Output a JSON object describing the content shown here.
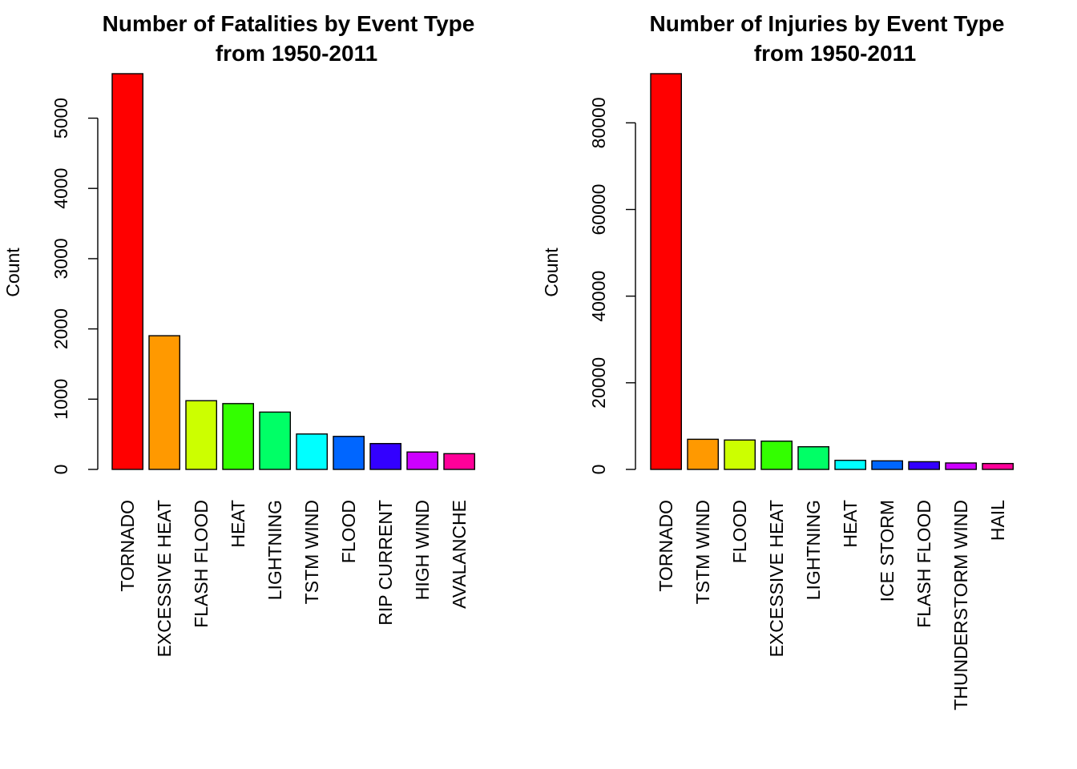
{
  "chart_data": [
    {
      "type": "bar",
      "title": "Number of Fatalities by Event Type",
      "subtitle": "from 1950-2011",
      "xlabel": "",
      "ylabel": "Count",
      "ylim": [
        0,
        5633
      ],
      "yticks": [
        0,
        1000,
        2000,
        3000,
        4000,
        5000
      ],
      "grid": false,
      "categories": [
        "TORNADO",
        "EXCESSIVE HEAT",
        "FLASH FLOOD",
        "HEAT",
        "LIGHTNING",
        "TSTM WIND",
        "FLOOD",
        "RIP CURRENT",
        "HIGH WIND",
        "AVALANCHE"
      ],
      "values": [
        5633,
        1903,
        978,
        937,
        816,
        504,
        470,
        368,
        248,
        224
      ],
      "colors": [
        "#FF0000",
        "#FF9900",
        "#CCFF00",
        "#33FF00",
        "#00FF66",
        "#00FFFF",
        "#0066FF",
        "#3300FF",
        "#CC00FF",
        "#FF0099"
      ]
    },
    {
      "type": "bar",
      "title": "Number of Injuries by Event Type",
      "subtitle": "from 1950-2011",
      "xlabel": "",
      "ylabel": "Count",
      "ylim": [
        0,
        91346
      ],
      "yticks": [
        0,
        20000,
        40000,
        60000,
        80000
      ],
      "grid": false,
      "categories": [
        "TORNADO",
        "TSTM WIND",
        "FLOOD",
        "EXCESSIVE HEAT",
        "LIGHTNING",
        "HEAT",
        "ICE STORM",
        "FLASH FLOOD",
        "THUNDERSTORM WIND",
        "HAIL"
      ],
      "values": [
        91346,
        6957,
        6789,
        6525,
        5230,
        2100,
        1975,
        1777,
        1488,
        1361
      ],
      "colors": [
        "#FF0000",
        "#FF9900",
        "#CCFF00",
        "#33FF00",
        "#00FF66",
        "#00FFFF",
        "#0066FF",
        "#3300FF",
        "#CC00FF",
        "#FF0099"
      ]
    }
  ]
}
